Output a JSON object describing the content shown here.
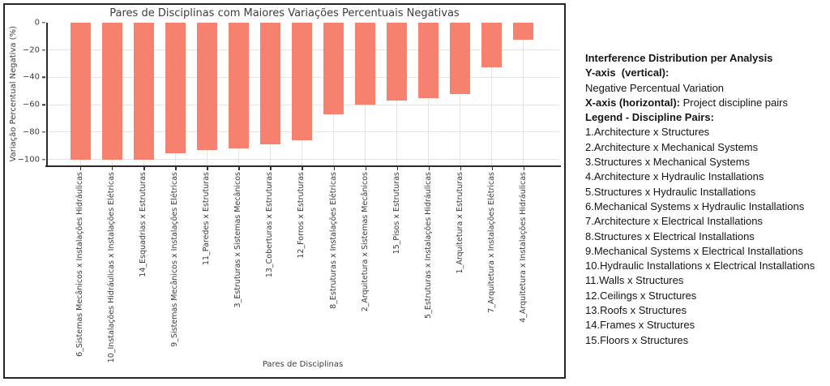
{
  "chart_data": {
    "type": "bar",
    "title": "Pares de Disciplinas com Maiores Variações Percentuais Negativas",
    "xlabel": "Pares de Disciplinas",
    "ylabel": "Variação Percentual Negativa (%)",
    "bar_color": "#f6816f",
    "grid": true,
    "legend_position": "none",
    "ylim": [
      -104.3,
      0
    ],
    "yticks": [
      0,
      -20,
      -40,
      -60,
      -80,
      -100
    ],
    "ytick_labels": [
      "0",
      "−20",
      "−40",
      "−60",
      "−80",
      "−100"
    ],
    "categories": [
      "6_Sistemas Mecânicos x Instalações Hidráulicas",
      "10_Instalações Hidráulicas x Instalações Elétricas",
      "14_Esquadrias x Estruturas",
      "9_Sistemas Mecânicos x Instalações Elétricas",
      "11_Paredes x Estruturas",
      "3_Estruturas x Sistemas Mecânicos",
      "13_Coberturas x Estruturas",
      "12_Forros x Estruturas",
      "8_Estruturas x Instalações Elétricas",
      "2_Arquitetura x Sistemas Mecânicos",
      "15_Pisos x Estruturas",
      "5_Estruturas x Instalações Hidráulicas",
      "1_Arquitetura x Estruturas",
      "7_Arquitetura x Instalações Elétricas",
      "4_Arquitetura x Instalações Hidráulicas"
    ],
    "values": [
      -100,
      -100,
      -100,
      -95.2,
      -93.3,
      -91.7,
      -88.9,
      -85.7,
      -66.7,
      -60.0,
      -56.7,
      -55.4,
      -52.4,
      -32.7,
      -12.5
    ]
  },
  "side_panel": {
    "heading": "Interference Distribution per Analysis",
    "yaxis_bold": "Y-axis  (vertical):",
    "yaxis_value": "Negative Percentual Variation",
    "xaxis_bold": "X-axis (horizontal):",
    "xaxis_value": " Project discipline pairs",
    "legend_heading": "Legend - Discipline Pairs:",
    "legend_items": [
      "1.Architecture x Structures",
      "2.Architecture x Mechanical Systems",
      "3.Structures x Mechanical Systems",
      "4.Architecture x Hydraulic Installations",
      "5.Structures x Hydraulic Installations",
      "6.Mechanical Systems x Hydraulic Installations",
      "7.Architecture x Electrical Installations",
      "8.Structures x Electrical Installations",
      "9.Mechanical Systems x Electrical Installations",
      "10.Hydraulic Installations x Electrical Installations",
      "11.Walls x Structures",
      "12.Ceilings x Structures",
      "13.Roofs x Structures",
      "14.Frames x Structures",
      "15.Floors x Structures"
    ]
  }
}
